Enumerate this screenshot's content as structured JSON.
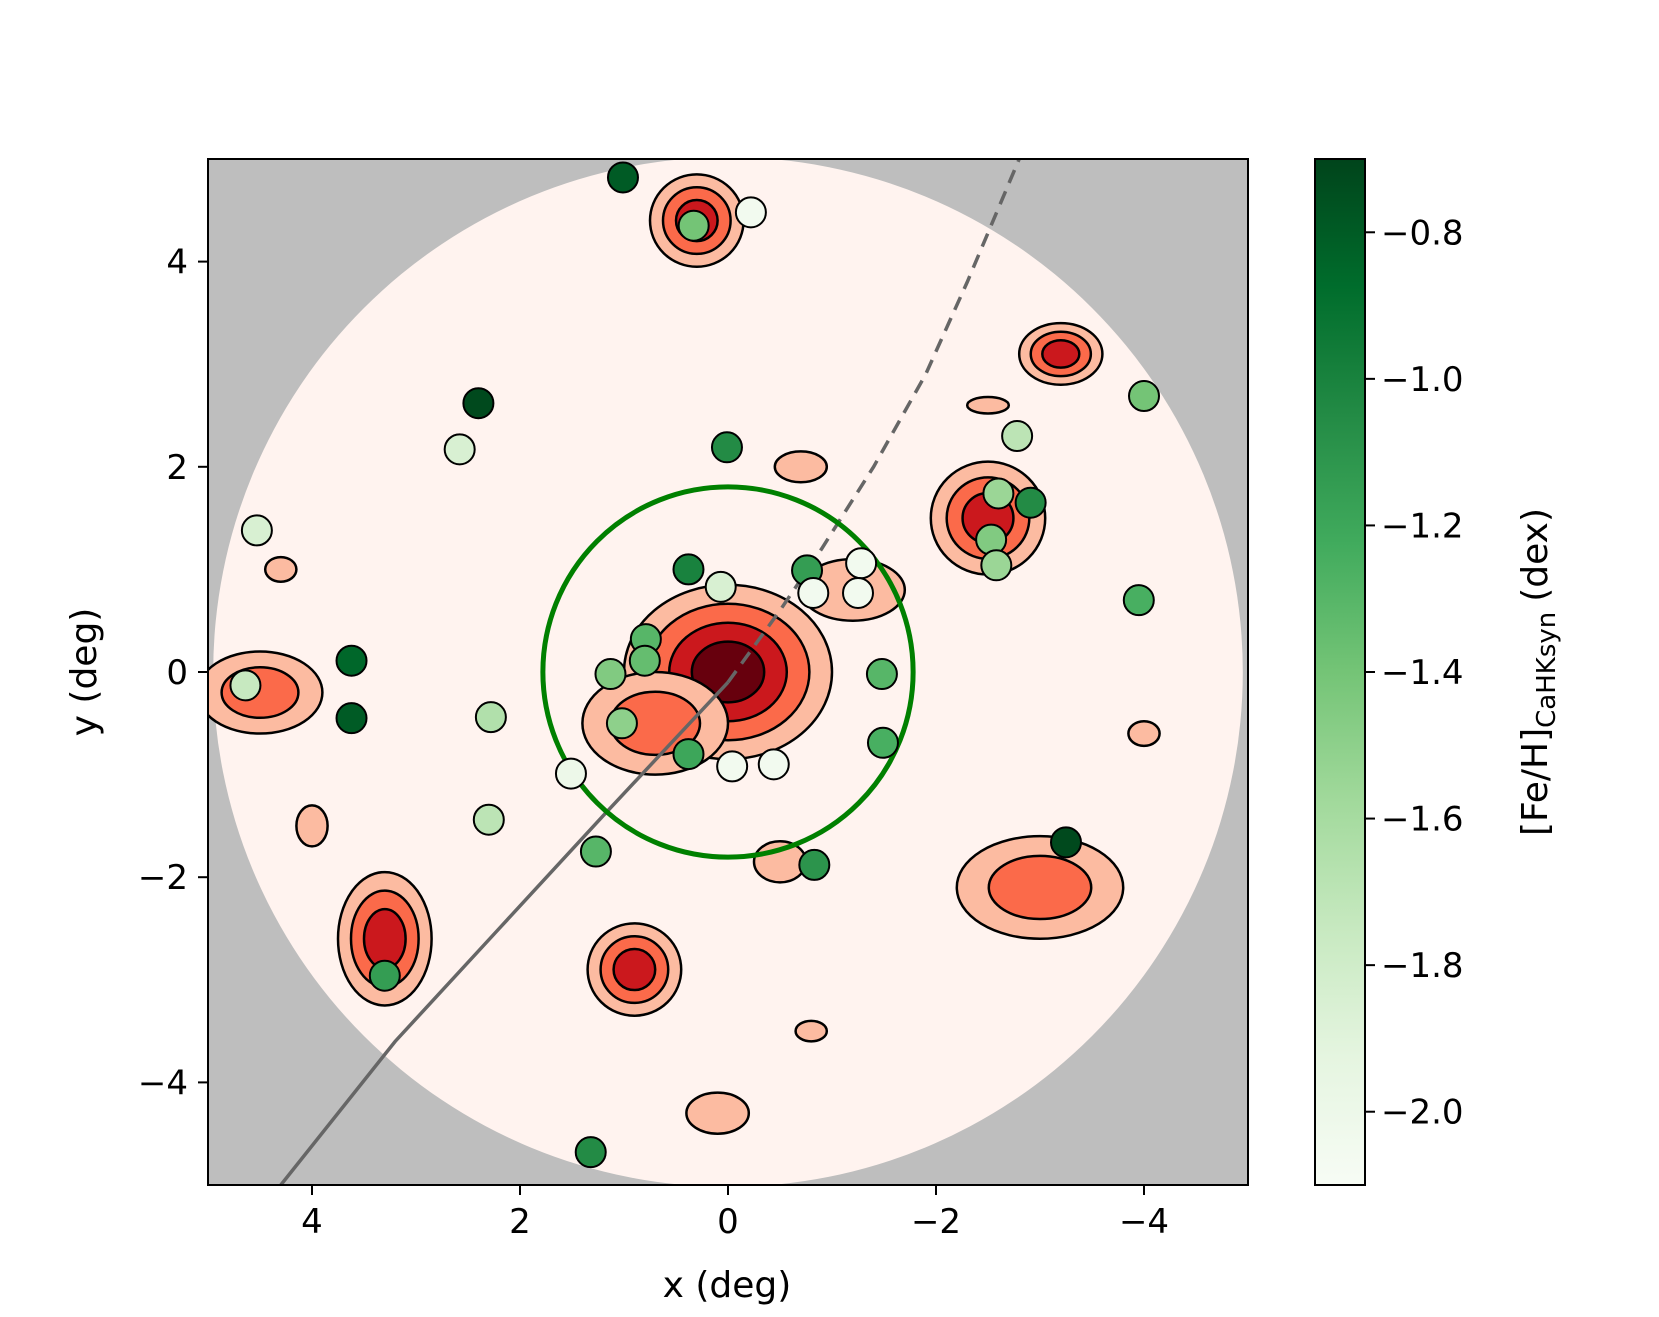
{
  "chart_data": {
    "type": "scatter",
    "title": "",
    "xlabel": "x (deg)",
    "ylabel": "y (deg)",
    "xlim": [
      5,
      -5
    ],
    "ylim": [
      -5,
      5
    ],
    "x_inverted": true,
    "xticks": [
      4,
      2,
      0,
      -2,
      -4
    ],
    "yticks": [
      4,
      2,
      0,
      -2,
      -4
    ],
    "tick_labels_x": [
      "4",
      "2",
      "0",
      "−2",
      "−4"
    ],
    "tick_labels_y": [
      "4",
      "2",
      "0",
      "−2",
      "−4"
    ],
    "grid": false,
    "colorbar": {
      "label": "[Fe/H]",
      "label_subscript": "CaHKsyn",
      "label_unit": "(dex)",
      "range": [
        -2.1,
        -0.7
      ],
      "ticks": [
        -0.8,
        -1.0,
        -1.2,
        -1.4,
        -1.6,
        -1.8,
        -2.0
      ],
      "tick_labels": [
        "−0.8",
        "−1.0",
        "−1.2",
        "−1.4",
        "−1.6",
        "−1.8",
        "−2.0"
      ],
      "colormap": "Greens",
      "color_low": "#f7fcf5",
      "color_high": "#00441b"
    },
    "background": {
      "outside_color": "#bebebe",
      "field_radius_deg": 4.95,
      "field_color": "#fff3ef"
    },
    "density_blobs": [
      {
        "x": 0.0,
        "y": 0.0,
        "rx": 1.0,
        "ry": 0.85,
        "levels": 4
      },
      {
        "x": 0.7,
        "y": -0.5,
        "rx": 0.7,
        "ry": 0.5,
        "levels": 2
      },
      {
        "x": 0.3,
        "y": 4.4,
        "rx": 0.45,
        "ry": 0.45,
        "levels": 3
      },
      {
        "x": -3.2,
        "y": 3.1,
        "rx": 0.4,
        "ry": 0.3,
        "levels": 3
      },
      {
        "x": -2.5,
        "y": 1.5,
        "rx": 0.55,
        "ry": 0.55,
        "levels": 3
      },
      {
        "x": 4.5,
        "y": -0.2,
        "rx": 0.6,
        "ry": 0.4,
        "levels": 2
      },
      {
        "x": 3.3,
        "y": -2.6,
        "rx": 0.45,
        "ry": 0.65,
        "levels": 3
      },
      {
        "x": 0.9,
        "y": -2.9,
        "rx": 0.45,
        "ry": 0.45,
        "levels": 3
      },
      {
        "x": -3.0,
        "y": -2.1,
        "rx": 0.8,
        "ry": 0.5,
        "levels": 2
      },
      {
        "x": -1.2,
        "y": 0.8,
        "rx": 0.5,
        "ry": 0.3,
        "levels": 1
      },
      {
        "x": -0.5,
        "y": -1.85,
        "rx": 0.25,
        "ry": 0.2,
        "levels": 1
      },
      {
        "x": 0.1,
        "y": -4.3,
        "rx": 0.3,
        "ry": 0.2,
        "levels": 1
      },
      {
        "x": -0.8,
        "y": -3.5,
        "rx": 0.15,
        "ry": 0.1,
        "levels": 1
      },
      {
        "x": 4.3,
        "y": 1.0,
        "rx": 0.15,
        "ry": 0.12,
        "levels": 1
      },
      {
        "x": 4.0,
        "y": -1.5,
        "rx": 0.15,
        "ry": 0.2,
        "levels": 1
      },
      {
        "x": -0.7,
        "y": 2.0,
        "rx": 0.25,
        "ry": 0.15,
        "levels": 1
      },
      {
        "x": -4.0,
        "y": -0.6,
        "rx": 0.15,
        "ry": 0.12,
        "levels": 1
      },
      {
        "x": -2.5,
        "y": 2.6,
        "rx": 0.2,
        "ry": 0.08,
        "levels": 1
      }
    ],
    "circle": {
      "x": 0.0,
      "y": 0.0,
      "radius": 1.78,
      "color": "#008000"
    },
    "track": {
      "color": "#666666",
      "x": [
        4.3,
        3.2,
        2.2,
        1.2,
        0.6,
        0.0,
        -0.5,
        -0.9,
        -1.4,
        -1.9,
        -2.3,
        -2.8
      ],
      "y": [
        -5.0,
        -3.6,
        -2.5,
        -1.4,
        -0.75,
        -0.1,
        0.6,
        1.2,
        2.0,
        2.9,
        3.8,
        5.0
      ],
      "solid_until_index": 5
    },
    "points": [
      {
        "x": 1.01,
        "y": 4.82,
        "feh": -0.8
      },
      {
        "x": 0.33,
        "y": 4.35,
        "feh": -1.4
      },
      {
        "x": -0.22,
        "y": 4.48,
        "feh": -2.05
      },
      {
        "x": 2.4,
        "y": 2.62,
        "feh": -0.72
      },
      {
        "x": 2.58,
        "y": 2.17,
        "feh": -1.85
      },
      {
        "x": 0.01,
        "y": 2.19,
        "feh": -1.05
      },
      {
        "x": 4.53,
        "y": 1.38,
        "feh": -1.85
      },
      {
        "x": 3.62,
        "y": 0.11,
        "feh": -0.85
      },
      {
        "x": 3.62,
        "y": -0.45,
        "feh": -0.8
      },
      {
        "x": 4.64,
        "y": -0.13,
        "feh": -1.75
      },
      {
        "x": 2.28,
        "y": -0.44,
        "feh": -1.65
      },
      {
        "x": 2.3,
        "y": -1.44,
        "feh": -1.7
      },
      {
        "x": 3.3,
        "y": -2.96,
        "feh": -1.15
      },
      {
        "x": 1.27,
        "y": -1.75,
        "feh": -1.3
      },
      {
        "x": 1.32,
        "y": -4.68,
        "feh": -1.05
      },
      {
        "x": 1.51,
        "y": -0.99,
        "feh": -2.0
      },
      {
        "x": 1.13,
        "y": -0.02,
        "feh": -1.45
      },
      {
        "x": 1.02,
        "y": -0.5,
        "feh": -1.5
      },
      {
        "x": 0.79,
        "y": 0.32,
        "feh": -1.3
      },
      {
        "x": 0.8,
        "y": 0.11,
        "feh": -1.35
      },
      {
        "x": 0.38,
        "y": 1.0,
        "feh": -1.0
      },
      {
        "x": 0.07,
        "y": 0.83,
        "feh": -1.85
      },
      {
        "x": 0.38,
        "y": -0.8,
        "feh": -1.2
      },
      {
        "x": -0.04,
        "y": -0.92,
        "feh": -2.05
      },
      {
        "x": -0.44,
        "y": -0.9,
        "feh": -2.05
      },
      {
        "x": -0.76,
        "y": 0.99,
        "feh": -1.15
      },
      {
        "x": -0.82,
        "y": 0.77,
        "feh": -2.05
      },
      {
        "x": -1.28,
        "y": 1.06,
        "feh": -2.05
      },
      {
        "x": -1.25,
        "y": 0.77,
        "feh": -2.05
      },
      {
        "x": -1.48,
        "y": -0.02,
        "feh": -1.3
      },
      {
        "x": -1.49,
        "y": -0.69,
        "feh": -1.25
      },
      {
        "x": -0.83,
        "y": -1.88,
        "feh": -1.1
      },
      {
        "x": -2.78,
        "y": 2.3,
        "feh": -1.7
      },
      {
        "x": -2.6,
        "y": 1.74,
        "feh": -1.55
      },
      {
        "x": -2.91,
        "y": 1.65,
        "feh": -1.05
      },
      {
        "x": -2.53,
        "y": 1.29,
        "feh": -1.45
      },
      {
        "x": -2.58,
        "y": 1.04,
        "feh": -1.55
      },
      {
        "x": -4.0,
        "y": 2.69,
        "feh": -1.4
      },
      {
        "x": -3.95,
        "y": 0.7,
        "feh": -1.25
      },
      {
        "x": -3.25,
        "y": -1.66,
        "feh": -0.72
      }
    ]
  }
}
